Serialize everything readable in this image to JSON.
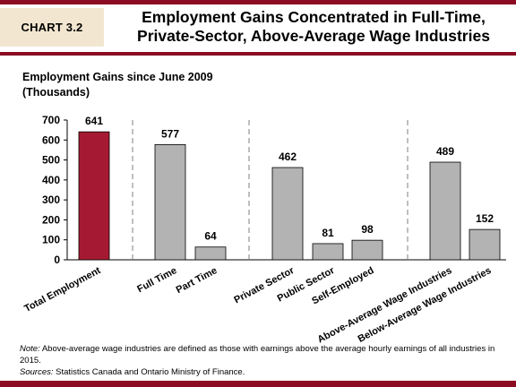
{
  "header": {
    "chart_tag": "CHART 3.2",
    "title_line1": "Employment Gains Concentrated in Full-Time,",
    "title_line2": "Private-Sector, Above-Average Wage Industries"
  },
  "colors": {
    "brand": "#8b0b23",
    "highlight_bar": "#a51a32",
    "bar": "#b3b3b3",
    "tag_bg": "#f2e6d0"
  },
  "chart_data": {
    "type": "bar",
    "title": "Employment Gains Concentrated in Full-Time, Private-Sector, Above-Average Wage Industries",
    "ylabel_line1": "Employment Gains since June 2009",
    "ylabel_line2": "(Thousands)",
    "categories": [
      "Total Employment",
      "Full Time",
      "Part Time",
      "Private Sector",
      "Public Sector",
      "Self-Employed",
      "Above-Average Wage Industries",
      "Below-Average Wage Industries"
    ],
    "values": [
      641,
      577,
      64,
      462,
      81,
      98,
      489,
      152
    ],
    "highlight_index": 0,
    "groups": [
      [
        0
      ],
      [
        1,
        2
      ],
      [
        3,
        4,
        5
      ],
      [
        6,
        7
      ]
    ],
    "ylim": [
      0,
      700
    ],
    "yticks": [
      0,
      100,
      200,
      300,
      400,
      500,
      600,
      700
    ],
    "grid": false
  },
  "footnote": {
    "note_label": "Note:",
    "note_text": " Above-average wage industries are defined as those with earnings above the average hourly earnings of all industries in 2015.",
    "sources_label": "Sources:",
    "sources_text": " Statistics  Canada and Ontario Ministry of Finance."
  }
}
